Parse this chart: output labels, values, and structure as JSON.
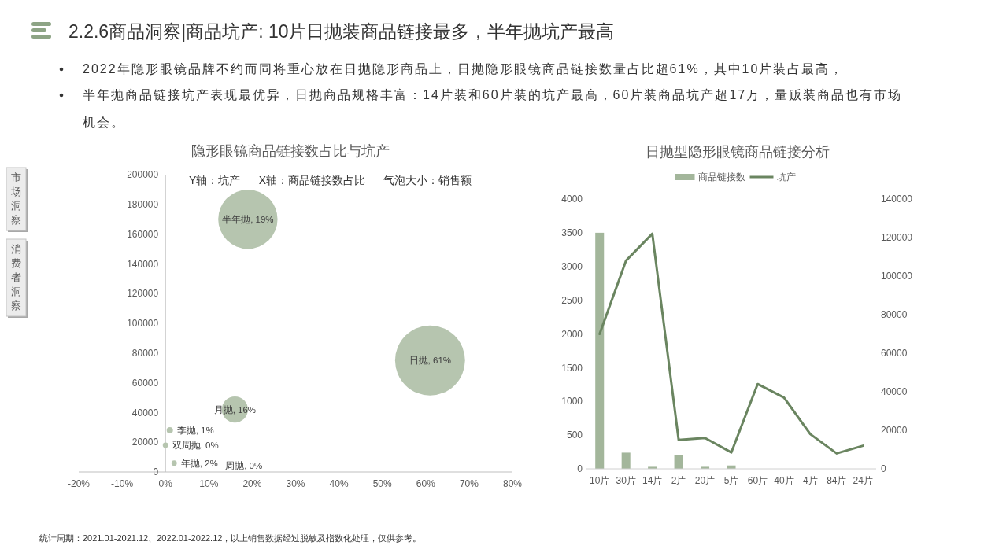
{
  "chart_data": [
    {
      "type": "other",
      "title": "2.2.6商品洞察|商品坑产: 10片日抛装商品链接最多，半年抛坑产最高",
      "annotations": [
        "2022年隐形眼镜品牌不约而同将重心放在日抛隐形商品上，日抛隐形眼镜商品链接数量占比超61%，其中10片装占最高，",
        "半年抛商品链接坑产表现最优异，日抛商品规格丰富：14片装和60片装的坑产最高，60片装商品坑产超17万，量贩装商品也有市场机会。",
        "市场洞察",
        "消费者洞察",
        "统计周期：2021.01-2021.12、2022.01-2022.12，以上销售数据经过脱敏及指数化处理，仅供参考。"
      ]
    },
    {
      "type": "bubble",
      "title": "隐形眼镜商品链接数占比与坑产",
      "subtitle": "Y轴：坑产      X轴：商品链接数占比      气泡大小：销售额",
      "x": [
        19,
        61,
        16,
        1,
        0,
        2
      ],
      "values": [
        170000,
        75000,
        42000,
        28000,
        18000,
        6000
      ],
      "sizes": [
        0.72,
        1,
        0.14,
        0.008,
        0.006,
        0.006
      ],
      "color": "#b6c5af",
      "xlim": [
        -20,
        80
      ],
      "xticks": [
        {
          "value": -20,
          "label": "-20%"
        },
        {
          "value": -10,
          "label": "-10%"
        },
        {
          "value": 0,
          "label": "0%"
        },
        {
          "value": 10,
          "label": "10%"
        },
        {
          "value": 20,
          "label": "20%"
        },
        {
          "value": 30,
          "label": "30%"
        },
        {
          "value": 40,
          "label": "40%"
        },
        {
          "value": 50,
          "label": "50%"
        },
        {
          "value": 60,
          "label": "60%"
        },
        {
          "value": 70,
          "label": "70%"
        },
        {
          "value": 80,
          "label": "80%"
        }
      ],
      "ylim": [
        0,
        200000
      ],
      "yticks": [
        0,
        20000,
        40000,
        60000,
        80000,
        100000,
        120000,
        140000,
        160000,
        180000,
        200000
      ],
      "annotations": [
        {
          "text": "半年抛, 19%",
          "x": 19,
          "y": 170000
        },
        {
          "text": "日抛, 61%",
          "x": 61,
          "y": 75000
        },
        {
          "text": "月抛, 16%",
          "x": 16,
          "y": 42000
        },
        {
          "text": "季抛, 1%",
          "x": 1,
          "y": 28000
        },
        {
          "text": "双周抛, 0%",
          "x": 0,
          "y": 18000
        },
        {
          "text": "年抛, 2%",
          "x": 2,
          "y": 6000
        },
        "周抛, 0%"
      ]
    },
    {
      "type": "bar",
      "title": "日抛型隐形眼镜商品链接分析",
      "categories": [
        "10片",
        "30片",
        "14片",
        "2片",
        "20片",
        "5片",
        "60片",
        "40片",
        "4片",
        "84片",
        "24片"
      ],
      "series": [
        {
          "name": "商品链接数",
          "type": "bar",
          "color": "#a3b69b",
          "values": [
            3500,
            240,
            30,
            200,
            30,
            50,
            null,
            null,
            null,
            null,
            null
          ]
        },
        {
          "name": "坑产",
          "type": "line",
          "axis": "y2",
          "color": "#6a8560",
          "values": [
            70000,
            108000,
            122000,
            15000,
            16000,
            8500,
            44000,
            37000,
            18000,
            8000,
            12000
          ]
        }
      ],
      "ylim": [
        0,
        4000
      ],
      "yticks": [
        0,
        500,
        1000,
        1500,
        2000,
        2500,
        3000,
        3500,
        4000
      ],
      "y2lim": [
        0,
        140000
      ],
      "y2ticks": [
        0,
        20000,
        40000,
        60000,
        80000,
        100000,
        120000,
        140000
      ],
      "legend": "top"
    }
  ]
}
